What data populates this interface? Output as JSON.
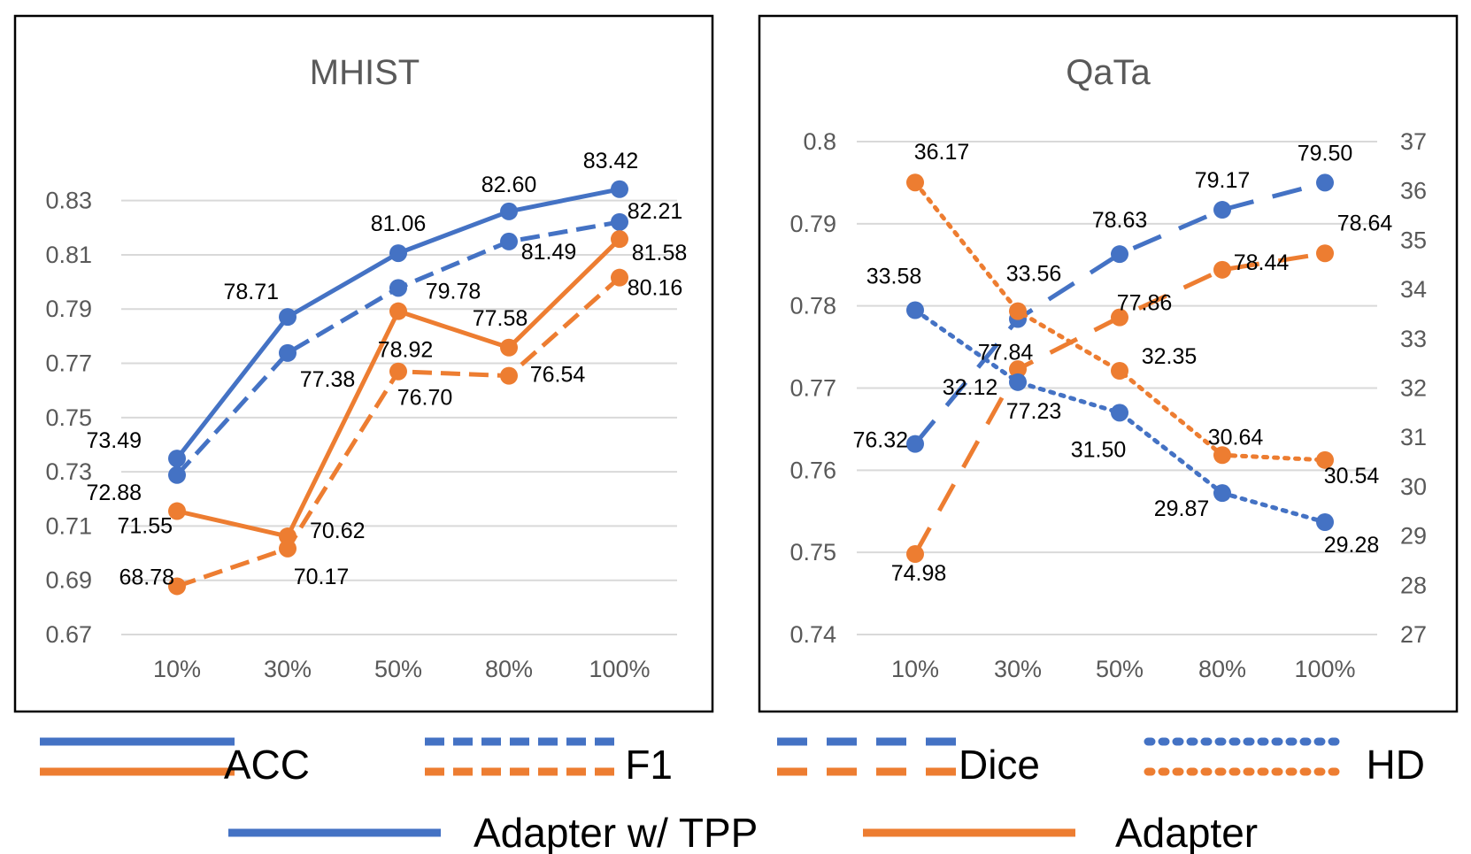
{
  "colors": {
    "blue": "#4472C4",
    "orange": "#ED7D31",
    "grid": "#D9D9D9",
    "frame": "#000000"
  },
  "chart_data": [
    {
      "type": "line",
      "title": "MHIST",
      "categories": [
        "10%",
        "30%",
        "50%",
        "80%",
        "100%"
      ],
      "ylim": [
        0.67,
        0.84
      ],
      "yticks": [
        "0.67",
        "0.69",
        "0.71",
        "0.73",
        "0.75",
        "0.77",
        "0.79",
        "0.81",
        "0.83"
      ],
      "series": [
        {
          "name": "Adapter w/ TPP ACC",
          "metric": "ACC",
          "method": "Adapter w/ TPP",
          "color": "blue",
          "dash": "solid",
          "values": [
            0.7349,
            0.7871,
            0.8106,
            0.826,
            0.8342
          ],
          "labels": [
            "73.49",
            "78.71",
            "81.06",
            "82.60",
            "83.42"
          ]
        },
        {
          "name": "Adapter w/ TPP F1",
          "metric": "F1",
          "method": "Adapter w/ TPP",
          "color": "blue",
          "dash": "dash",
          "values": [
            0.7288,
            0.7738,
            0.7978,
            0.8149,
            0.8221
          ],
          "labels": [
            "72.88",
            "77.38",
            "79.78",
            "81.49",
            "82.21"
          ]
        },
        {
          "name": "Adapter ACC",
          "metric": "ACC",
          "method": "Adapter",
          "color": "orange",
          "dash": "solid",
          "values": [
            0.7155,
            0.7062,
            0.7892,
            0.7758,
            0.8158
          ],
          "labels": [
            "71.55",
            "70.62",
            "78.92",
            "77.58",
            "81.58"
          ]
        },
        {
          "name": "Adapter F1",
          "metric": "F1",
          "method": "Adapter",
          "color": "orange",
          "dash": "dash",
          "values": [
            0.6878,
            0.7017,
            0.767,
            0.7654,
            0.8016
          ],
          "labels": [
            "68.78",
            "70.17",
            "76.70",
            "76.54",
            "80.16"
          ]
        }
      ]
    },
    {
      "type": "line",
      "title": "QaTa",
      "categories": [
        "10%",
        "30%",
        "50%",
        "80%",
        "100%"
      ],
      "ylim": [
        0.74,
        0.8
      ],
      "yticks": [
        "0.74",
        "0.75",
        "0.76",
        "0.77",
        "0.78",
        "0.79",
        "0.8"
      ],
      "y2lim": [
        27,
        37
      ],
      "y2ticks": [
        "27",
        "28",
        "29",
        "30",
        "31",
        "32",
        "33",
        "34",
        "35",
        "36",
        "37"
      ],
      "series": [
        {
          "name": "Adapter w/ TPP Dice",
          "metric": "Dice",
          "method": "Adapter w/ TPP",
          "color": "blue",
          "dash": "longdash",
          "axis": "left",
          "values": [
            0.7632,
            0.7784,
            0.7863,
            0.7917,
            0.795
          ],
          "labels": [
            "76.32",
            "77.84",
            "78.63",
            "79.17",
            "79.50"
          ]
        },
        {
          "name": "Adapter Dice",
          "metric": "Dice",
          "method": "Adapter",
          "color": "orange",
          "dash": "longdash",
          "axis": "left",
          "values": [
            0.7498,
            0.7723,
            0.7786,
            0.7844,
            0.7864
          ],
          "labels": [
            "74.98",
            "77.23",
            "77.86",
            "78.44",
            "78.64"
          ]
        },
        {
          "name": "Adapter w/ TPP HD",
          "metric": "HD",
          "method": "Adapter w/ TPP",
          "color": "blue",
          "dash": "dot",
          "axis": "right",
          "values": [
            33.58,
            32.12,
            31.5,
            29.87,
            29.28
          ],
          "labels": [
            "33.58",
            "32.12",
            "31.50",
            "29.87",
            "29.28"
          ]
        },
        {
          "name": "Adapter HD",
          "metric": "HD",
          "method": "Adapter",
          "color": "orange",
          "dash": "dot",
          "axis": "right",
          "values": [
            36.17,
            33.56,
            32.35,
            30.64,
            30.54
          ],
          "labels": [
            "36.17",
            "33.56",
            "32.35",
            "30.64",
            "30.54"
          ]
        }
      ]
    }
  ],
  "legend": {
    "metrics": [
      {
        "label": "ACC",
        "dash": "solid"
      },
      {
        "label": "F1",
        "dash": "dash"
      },
      {
        "label": "Dice",
        "dash": "longdash"
      },
      {
        "label": "HD",
        "dash": "dot"
      }
    ],
    "methods": [
      {
        "label": "Adapter w/ TPP",
        "color": "blue"
      },
      {
        "label": "Adapter",
        "color": "orange"
      }
    ]
  }
}
